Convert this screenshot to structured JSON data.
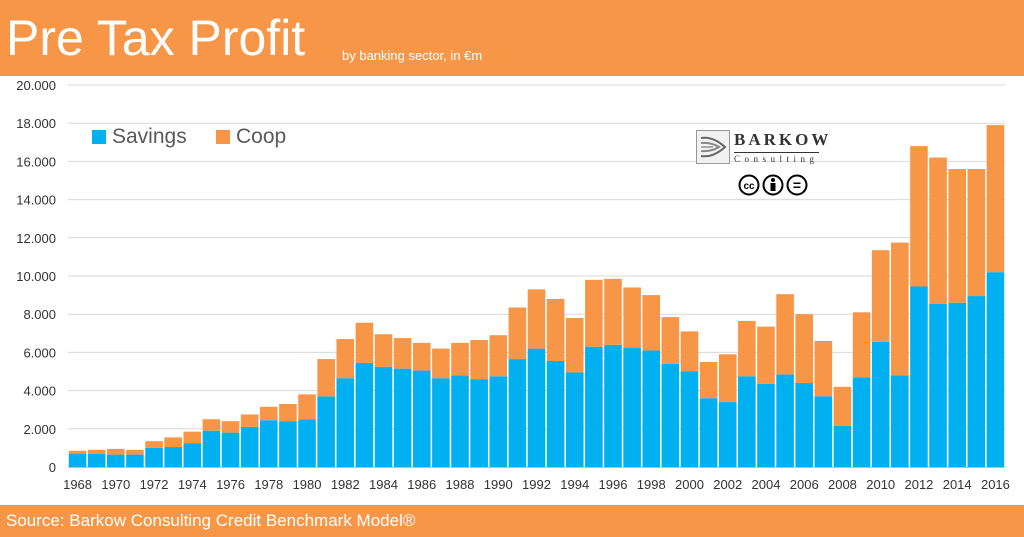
{
  "header": {
    "title": "Pre Tax Profit",
    "subtitle": "by banking sector, in €m",
    "bg_color": "#f79646"
  },
  "footer": {
    "source": "Source: Barkow Consulting Credit Benchmark Model®"
  },
  "logo": {
    "name": "BARKOW",
    "sub": "Consulting",
    "icon": "barkow-logo-icon",
    "license_icons": [
      "cc-icon",
      "by-icon",
      "nd-icon"
    ],
    "license_symbols": [
      "cc",
      "="
    ]
  },
  "chart_data": {
    "type": "bar",
    "stacked": true,
    "categories": [
      "1968",
      "1969",
      "1970",
      "1971",
      "1972",
      "1973",
      "1974",
      "1975",
      "1976",
      "1977",
      "1978",
      "1979",
      "1980",
      "1981",
      "1982",
      "1983",
      "1984",
      "1985",
      "1986",
      "1987",
      "1988",
      "1989",
      "1990",
      "1991",
      "1992",
      "1993",
      "1994",
      "1995",
      "1996",
      "1997",
      "1998",
      "1999",
      "2000",
      "2001",
      "2002",
      "2003",
      "2004",
      "2005",
      "2006",
      "2007",
      "2008",
      "2009",
      "2010",
      "2011",
      "2012",
      "2013",
      "2014",
      "2015",
      "2016"
    ],
    "tick_labels": [
      "1968",
      "1970",
      "1972",
      "1974",
      "1976",
      "1978",
      "1980",
      "1982",
      "1984",
      "1986",
      "1988",
      "1990",
      "1992",
      "1994",
      "1996",
      "1998",
      "2000",
      "2002",
      "2004",
      "2006",
      "2008",
      "2010",
      "2012",
      "2014",
      "2016"
    ],
    "series": [
      {
        "name": "Savings",
        "color": "#00b0f0",
        "values": [
          700,
          700,
          650,
          650,
          1000,
          1050,
          1250,
          1900,
          1800,
          2100,
          2450,
          2400,
          2500,
          3700,
          4650,
          5450,
          5250,
          5150,
          5050,
          4650,
          4800,
          4600,
          4750,
          5650,
          6200,
          5550,
          4950,
          6300,
          6400,
          6250,
          6100,
          5400,
          5000,
          3600,
          3400,
          4750,
          4350,
          4850,
          4400,
          3700,
          2150,
          4700,
          6550,
          4800,
          9450,
          8550,
          8600,
          8950,
          10200
        ]
      },
      {
        "name": "Coop",
        "color": "#f79646",
        "values": [
          150,
          200,
          300,
          250,
          350,
          500,
          600,
          600,
          600,
          650,
          700,
          900,
          1300,
          1950,
          2050,
          2100,
          1700,
          1600,
          1450,
          1550,
          1700,
          2050,
          2150,
          2700,
          3100,
          3250,
          2850,
          3500,
          3450,
          3150,
          2900,
          2450,
          2100,
          1900,
          2500,
          2900,
          3000,
          4200,
          3600,
          2900,
          2050,
          3400,
          4800,
          6950,
          7350,
          7650,
          7000,
          6650,
          7700
        ]
      }
    ],
    "ylim": [
      0,
      20000
    ],
    "yticks": [
      0,
      2000,
      4000,
      6000,
      8000,
      10000,
      12000,
      14000,
      16000,
      18000,
      20000
    ],
    "ytick_labels": [
      "0",
      "2.000",
      "4.000",
      "6.000",
      "8.000",
      "10.000",
      "12.000",
      "14.000",
      "16.000",
      "18.000",
      "20.000"
    ],
    "grid": true,
    "legend": "top-left",
    "xlabel": "",
    "ylabel": ""
  }
}
